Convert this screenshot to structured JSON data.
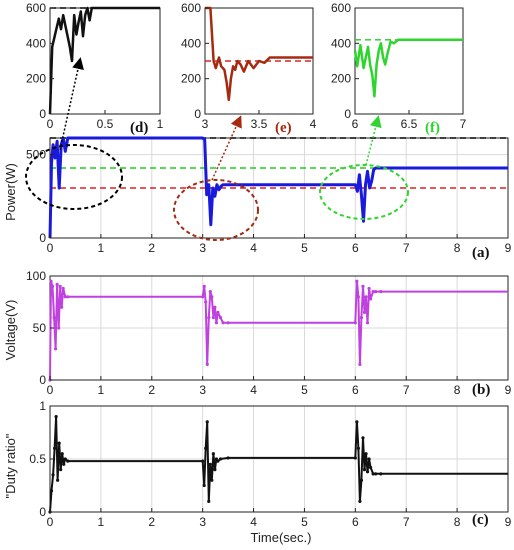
{
  "figure": {
    "xlabel": "Time(sec.)"
  },
  "colors": {
    "power": "#1a1adc",
    "voltage": "#c040e0",
    "duty": "#111111",
    "inset_d": "#111111",
    "inset_e": "#a52a10",
    "inset_f": "#2fd42f",
    "ref_black": "#000000",
    "ref_green": "#22cc22",
    "ref_red": "#dd2222"
  },
  "chart_data": [
    {
      "id": "inset-d",
      "type": "line",
      "panel_label": "(d)",
      "label_color": "#111111",
      "xlim": [
        0,
        1
      ],
      "ylim": [
        0,
        600
      ],
      "xticks": [
        0,
        0.5,
        1
      ],
      "xtick_labels": [
        "0",
        "0.5",
        "1"
      ],
      "yticks": [
        0,
        200,
        400,
        600
      ],
      "ytick_labels": [
        "0",
        "200",
        "400",
        "600"
      ],
      "reference": {
        "y": 600,
        "color": "#000000",
        "dashed": true
      },
      "series": [
        {
          "color": "#111111",
          "x": [
            0,
            0.02,
            0.05,
            0.08,
            0.1,
            0.12,
            0.14,
            0.16,
            0.18,
            0.2,
            0.22,
            0.24,
            0.26,
            0.28,
            0.3,
            0.32,
            0.34,
            0.36,
            0.38,
            0.4,
            0.45,
            1.0
          ],
          "y": [
            0,
            380,
            460,
            540,
            480,
            560,
            500,
            440,
            380,
            300,
            560,
            450,
            520,
            580,
            440,
            560,
            600,
            530,
            600,
            600,
            600,
            600
          ]
        }
      ]
    },
    {
      "id": "inset-e",
      "type": "line",
      "panel_label": "(e)",
      "label_color": "#a52a10",
      "xlim": [
        3,
        4
      ],
      "ylim": [
        0,
        600
      ],
      "xticks": [
        3,
        3.5,
        4
      ],
      "xtick_labels": [
        "3",
        "3.5",
        "4"
      ],
      "yticks": [
        0,
        200,
        400,
        600
      ],
      "ytick_labels": [
        "0",
        "200",
        "400",
        "600"
      ],
      "reference": {
        "y": 300,
        "color": "#dd2222",
        "dashed": true
      },
      "series": [
        {
          "color": "#a52a10",
          "x": [
            3.0,
            3.03,
            3.05,
            3.08,
            3.1,
            3.13,
            3.15,
            3.18,
            3.2,
            3.22,
            3.24,
            3.26,
            3.28,
            3.3,
            3.33,
            3.36,
            3.4,
            3.45,
            3.5,
            3.55,
            3.6,
            4.0
          ],
          "y": [
            600,
            600,
            600,
            300,
            260,
            320,
            270,
            250,
            180,
            80,
            200,
            270,
            250,
            300,
            280,
            240,
            300,
            260,
            300,
            290,
            320,
            320
          ]
        }
      ]
    },
    {
      "id": "inset-f",
      "type": "line",
      "panel_label": "(f)",
      "label_color": "#2fd42f",
      "xlim": [
        6,
        7
      ],
      "ylim": [
        0,
        600
      ],
      "xticks": [
        6,
        6.5,
        7
      ],
      "xtick_labels": [
        "6",
        "6.5",
        "7"
      ],
      "yticks": [
        0,
        200,
        400,
        600
      ],
      "ytick_labels": [
        "0",
        "200",
        "400",
        "600"
      ],
      "reference": {
        "y": 420,
        "color": "#22cc22",
        "dashed": true
      },
      "series": [
        {
          "color": "#2fd42f",
          "x": [
            6.0,
            6.02,
            6.05,
            6.08,
            6.1,
            6.12,
            6.14,
            6.16,
            6.18,
            6.2,
            6.22,
            6.24,
            6.26,
            6.28,
            6.3,
            6.33,
            6.36,
            6.4,
            6.45,
            7.0
          ],
          "y": [
            360,
            270,
            390,
            260,
            320,
            380,
            280,
            220,
            100,
            280,
            360,
            400,
            320,
            280,
            340,
            410,
            400,
            420,
            420,
            420
          ]
        }
      ]
    },
    {
      "id": "panel-a",
      "type": "line",
      "panel_label": "(a)",
      "ylabel": "Power(W)",
      "xlim": [
        0,
        9
      ],
      "ylim": [
        0,
        600
      ],
      "xticks": [
        0,
        1,
        2,
        3,
        4,
        5,
        6,
        7,
        8,
        9
      ],
      "xtick_labels": [
        "0",
        "1",
        "2",
        "3",
        "4",
        "5",
        "6",
        "7",
        "8",
        "9"
      ],
      "yticks": [
        0,
        500
      ],
      "ytick_labels": [
        "0",
        "500"
      ],
      "references": [
        {
          "y": 600,
          "color": "#000000",
          "dashed": true
        },
        {
          "y": 420,
          "color": "#22cc22",
          "dashed": true
        },
        {
          "y": 300,
          "color": "#dd2222",
          "dashed": true
        }
      ],
      "series": [
        {
          "color": "#1a1adc",
          "x": [
            0,
            0.03,
            0.06,
            0.1,
            0.14,
            0.18,
            0.22,
            0.26,
            0.3,
            0.35,
            0.4,
            3.0,
            3.04,
            3.08,
            3.12,
            3.16,
            3.2,
            3.24,
            3.28,
            3.32,
            3.36,
            3.4,
            3.5,
            6.0,
            6.04,
            6.08,
            6.12,
            6.16,
            6.2,
            6.24,
            6.28,
            6.32,
            6.36,
            6.4,
            6.5,
            9.0
          ],
          "y": [
            0,
            450,
            560,
            480,
            580,
            300,
            560,
            600,
            520,
            600,
            600,
            600,
            590,
            260,
            320,
            80,
            300,
            250,
            320,
            290,
            310,
            320,
            320,
            320,
            280,
            380,
            260,
            100,
            320,
            400,
            300,
            340,
            410,
            420,
            420,
            420
          ]
        }
      ]
    },
    {
      "id": "panel-b",
      "type": "line",
      "panel_label": "(b)",
      "ylabel": "Voltage(V)",
      "xlim": [
        0,
        9
      ],
      "ylim": [
        0,
        100
      ],
      "xticks": [
        0,
        1,
        2,
        3,
        4,
        5,
        6,
        7,
        8,
        9
      ],
      "xtick_labels": [
        "0",
        "1",
        "2",
        "3",
        "4",
        "5",
        "6",
        "7",
        "8",
        "9"
      ],
      "yticks": [
        0,
        50,
        100
      ],
      "ytick_labels": [
        "0",
        "50",
        "100"
      ],
      "series": [
        {
          "color": "#c040e0",
          "x": [
            0,
            0.02,
            0.05,
            0.08,
            0.11,
            0.14,
            0.17,
            0.2,
            0.23,
            0.26,
            0.3,
            0.35,
            3.0,
            3.03,
            3.06,
            3.09,
            3.12,
            3.15,
            3.18,
            3.21,
            3.24,
            3.27,
            3.3,
            3.35,
            3.4,
            3.5,
            6.0,
            6.03,
            6.06,
            6.09,
            6.12,
            6.15,
            6.18,
            6.21,
            6.24,
            6.27,
            6.3,
            6.35,
            6.4,
            6.5,
            9.0
          ],
          "y": [
            0,
            95,
            90,
            60,
            30,
            92,
            50,
            90,
            70,
            88,
            80,
            80,
            80,
            90,
            75,
            15,
            60,
            85,
            80,
            60,
            70,
            55,
            65,
            60,
            55,
            55,
            55,
            95,
            80,
            15,
            60,
            90,
            65,
            80,
            55,
            88,
            78,
            85,
            85,
            85,
            85
          ]
        }
      ]
    },
    {
      "id": "panel-c",
      "type": "line",
      "panel_label": "(c)",
      "ylabel": "\"Duty ratio\"",
      "xlabel": "Time(sec.)",
      "xlim": [
        0,
        9
      ],
      "ylim": [
        0,
        1
      ],
      "xticks": [
        0,
        1,
        2,
        3,
        4,
        5,
        6,
        7,
        8,
        9
      ],
      "xtick_labels": [
        "0",
        "1",
        "2",
        "3",
        "4",
        "5",
        "6",
        "7",
        "8",
        "9"
      ],
      "yticks": [
        0,
        0.5,
        1
      ],
      "ytick_labels": [
        "0",
        "0.5",
        "1"
      ],
      "series": [
        {
          "color": "#111111",
          "x": [
            0,
            0.03,
            0.06,
            0.09,
            0.12,
            0.15,
            0.18,
            0.21,
            0.24,
            0.27,
            0.3,
            0.35,
            3.0,
            3.03,
            3.06,
            3.09,
            3.12,
            3.15,
            3.18,
            3.21,
            3.24,
            3.27,
            3.3,
            3.35,
            3.5,
            6.0,
            6.03,
            6.06,
            6.09,
            6.12,
            6.15,
            6.18,
            6.21,
            6.24,
            6.27,
            6.3,
            6.35,
            6.4,
            6.5,
            9.0
          ],
          "y": [
            0,
            0.2,
            0.35,
            0.6,
            0.9,
            0.3,
            0.65,
            0.4,
            0.55,
            0.45,
            0.5,
            0.48,
            0.48,
            0.25,
            0.6,
            0.85,
            0.1,
            0.45,
            0.3,
            0.55,
            0.4,
            0.5,
            0.48,
            0.5,
            0.51,
            0.51,
            0.85,
            0.6,
            0.1,
            0.3,
            0.7,
            0.4,
            0.55,
            0.38,
            0.5,
            0.42,
            0.36,
            0.36,
            0.36,
            0.36
          ]
        }
      ]
    }
  ]
}
